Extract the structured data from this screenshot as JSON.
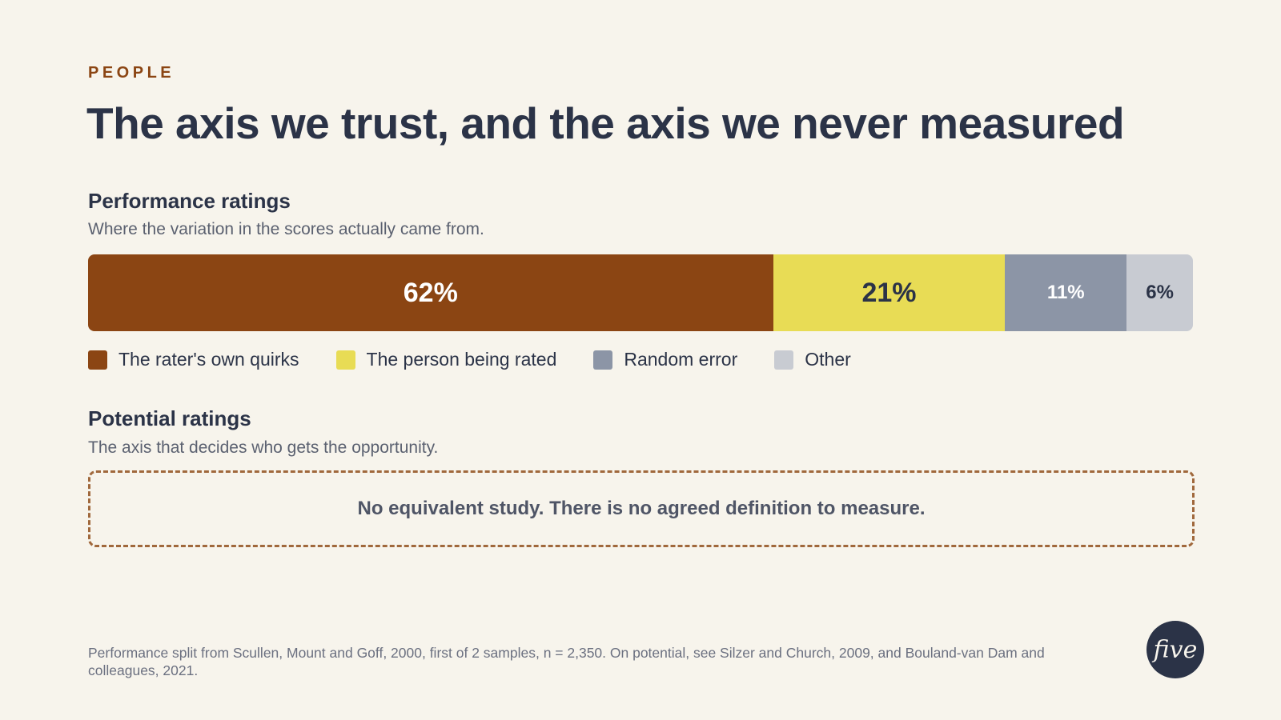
{
  "eyebrow": "PEOPLE",
  "title": "The axis we trust, and the axis we never measured",
  "performance": {
    "title": "Performance ratings",
    "subtitle": "Where the variation in the scores actually came from."
  },
  "potential": {
    "title": "Potential ratings",
    "subtitle": "The axis that decides who gets the opportunity.",
    "note": "No equivalent study. There is no agreed definition to measure."
  },
  "footnote": "Performance split from Scullen, Mount and Goff, 2000, first of 2 samples, n = 2,350. On potential, see Silzer and Church, 2009, and Bouland-van Dam and colleagues, 2021.",
  "logo": "five",
  "chart_data": {
    "type": "bar",
    "orientation": "horizontal-stacked",
    "title": "Performance ratings",
    "subtitle": "Where the variation in the scores actually came from.",
    "series": [
      {
        "name": "The rater's own quirks",
        "value": 62,
        "label": "62%",
        "color": "#8b4513",
        "text_color": "#ffffff"
      },
      {
        "name": "The person being rated",
        "value": 21,
        "label": "21%",
        "color": "#e8dc55",
        "text_color": "#2b3347"
      },
      {
        "name": "Random error",
        "value": 11,
        "label": "11%",
        "color": "#8c95a6",
        "text_color": "#ffffff"
      },
      {
        "name": "Other",
        "value": 6,
        "label": "6%",
        "color": "#c8cbd2",
        "text_color": "#2b3347"
      }
    ],
    "legend_position": "bottom-left"
  }
}
